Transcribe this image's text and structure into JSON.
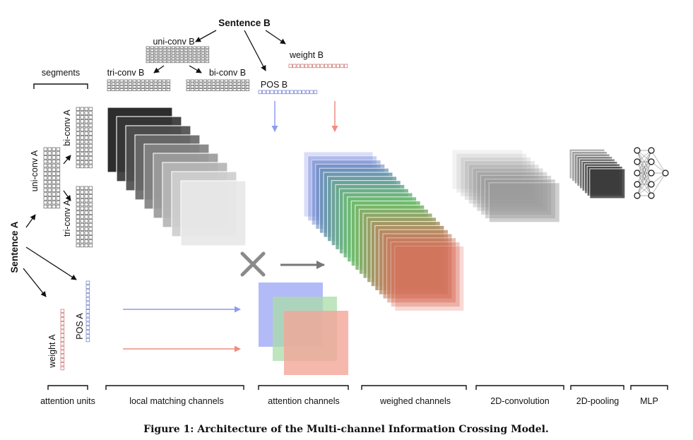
{
  "inputs": {
    "sentence_b": "Sentence B",
    "sentence_a": "Sentence A",
    "uni_conv_b": "uni-conv B",
    "tri_conv_b": "tri-conv B",
    "bi_conv_b": "bi-conv B",
    "weight_b": "weight B",
    "pos_b": "POS B",
    "segments": "segments",
    "uni_conv_a": "uni-conv A",
    "bi_conv_a": "bi-conv A",
    "tri_conv_a": "tri-conv A",
    "pos_a": "POS A",
    "weight_a": "weight A"
  },
  "stages": [
    "attention units",
    "local matching channels",
    "attention channels",
    "weighed channels",
    "2D-convolution",
    "2D-pooling",
    "MLP"
  ],
  "caption": "Figure 1: Architecture of the Multi-channel Information Crossing Model.",
  "colors": {
    "blue": "#6a7ae0",
    "green": "#6cc06c",
    "red": "#e46a5c",
    "weight_cell": "#c0504d",
    "pos_cell": "#5060c0"
  }
}
